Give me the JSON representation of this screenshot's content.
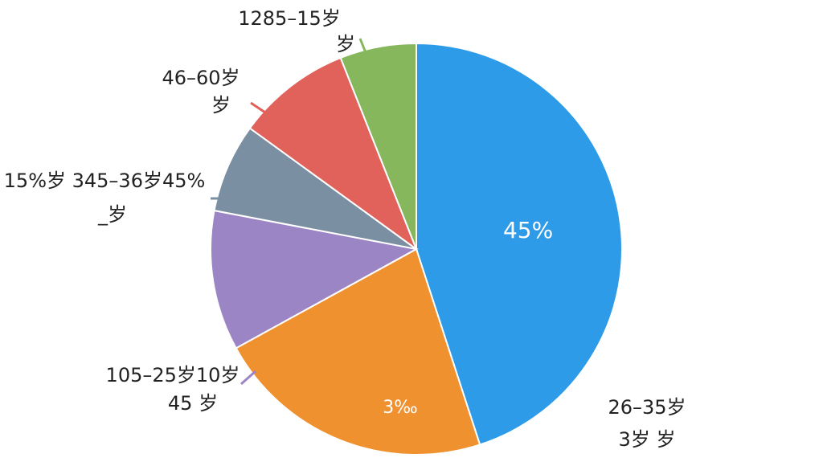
{
  "chart_data": {
    "type": "pie",
    "categories": [
      "26–35岁",
      null,
      "105–25岁10岁",
      "15%岁 345–36岁45%",
      "46–60岁",
      "1285–15岁"
    ],
    "category_sublabels": [
      "3岁 岁",
      null,
      "45 岁",
      "_岁",
      "岁",
      "岁"
    ],
    "values": [
      45,
      22,
      11,
      7,
      9,
      6
    ],
    "value_labels": [
      "45%",
      null,
      null,
      null,
      null,
      null
    ],
    "annotations": [
      "3‰"
    ],
    "colors": [
      "#2e9be8",
      "#f0912f",
      "#9b85c4",
      "#7b8fa3",
      "#e0625a",
      "#86b75d"
    ]
  }
}
